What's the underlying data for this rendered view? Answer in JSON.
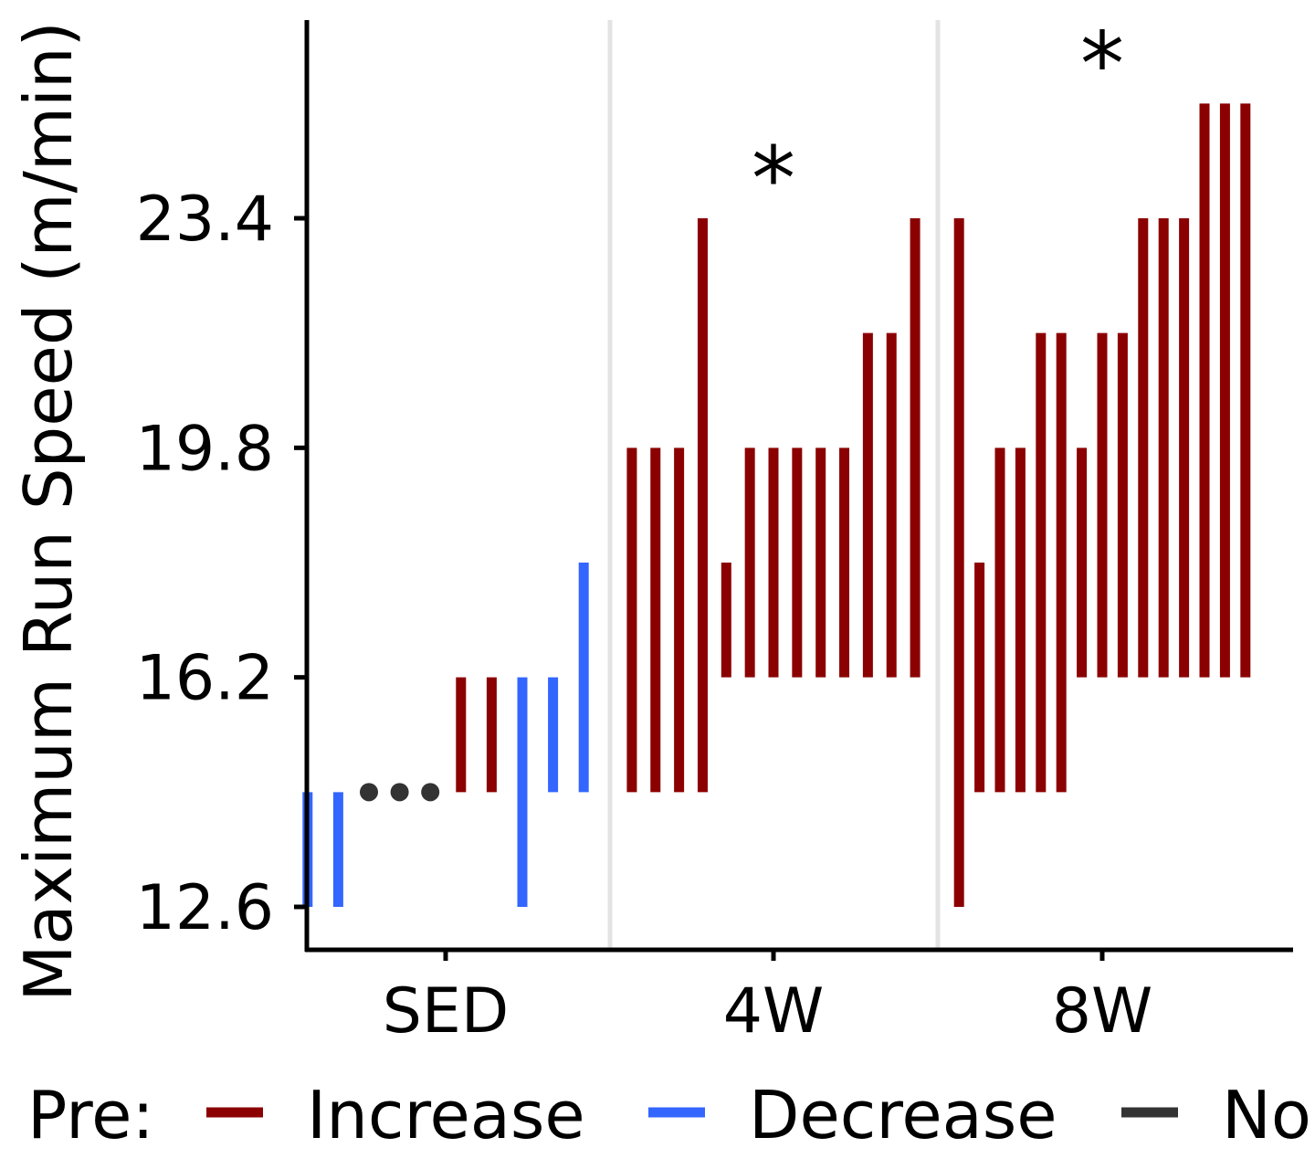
{
  "chart_data": {
    "type": "range-bar",
    "ylabel": "Maximum Run Speed (m/min)",
    "yticks": [
      12.6,
      16.2,
      19.8,
      23.4
    ],
    "ylim": [
      11.95,
      26.5
    ],
    "groups": [
      "SED",
      "4W",
      "8W"
    ],
    "significance_marker": "*",
    "legend": {
      "title": "Pre:",
      "position": "bottom",
      "entries": [
        {
          "label": "Increase",
          "color": "#8B0000"
        },
        {
          "label": "Decrease",
          "color": "#3366FF"
        },
        {
          "label": "No",
          "color": "#333333"
        }
      ]
    },
    "series": [
      {
        "group": "SED",
        "significant": false,
        "subjects": [
          {
            "from": 14.4,
            "to": 12.6,
            "change": "Decrease"
          },
          {
            "from": 14.4,
            "to": 12.6,
            "change": "Decrease"
          },
          {
            "from": 14.4,
            "to": 14.4,
            "change": "No"
          },
          {
            "from": 14.4,
            "to": 14.4,
            "change": "No"
          },
          {
            "from": 14.4,
            "to": 14.4,
            "change": "No"
          },
          {
            "from": 14.4,
            "to": 16.2,
            "change": "Increase"
          },
          {
            "from": 14.4,
            "to": 16.2,
            "change": "Increase"
          },
          {
            "from": 16.2,
            "to": 12.6,
            "change": "Decrease"
          },
          {
            "from": 16.2,
            "to": 14.4,
            "change": "Decrease"
          },
          {
            "from": 18.0,
            "to": 14.4,
            "change": "Decrease"
          }
        ]
      },
      {
        "group": "4W",
        "significant": true,
        "subjects": [
          {
            "from": 14.4,
            "to": 19.8,
            "change": "Increase"
          },
          {
            "from": 14.4,
            "to": 19.8,
            "change": "Increase"
          },
          {
            "from": 14.4,
            "to": 19.8,
            "change": "Increase"
          },
          {
            "from": 14.4,
            "to": 23.4,
            "change": "Increase"
          },
          {
            "from": 16.2,
            "to": 18.0,
            "change": "Increase"
          },
          {
            "from": 16.2,
            "to": 19.8,
            "change": "Increase"
          },
          {
            "from": 16.2,
            "to": 19.8,
            "change": "Increase"
          },
          {
            "from": 16.2,
            "to": 19.8,
            "change": "Increase"
          },
          {
            "from": 16.2,
            "to": 19.8,
            "change": "Increase"
          },
          {
            "from": 16.2,
            "to": 19.8,
            "change": "Increase"
          },
          {
            "from": 16.2,
            "to": 21.6,
            "change": "Increase"
          },
          {
            "from": 16.2,
            "to": 21.6,
            "change": "Increase"
          },
          {
            "from": 16.2,
            "to": 23.4,
            "change": "Increase"
          }
        ]
      },
      {
        "group": "8W",
        "significant": true,
        "subjects": [
          {
            "from": 12.6,
            "to": 23.4,
            "change": "Increase"
          },
          {
            "from": 14.4,
            "to": 18.0,
            "change": "Increase"
          },
          {
            "from": 14.4,
            "to": 19.8,
            "change": "Increase"
          },
          {
            "from": 14.4,
            "to": 19.8,
            "change": "Increase"
          },
          {
            "from": 14.4,
            "to": 21.6,
            "change": "Increase"
          },
          {
            "from": 14.4,
            "to": 21.6,
            "change": "Increase"
          },
          {
            "from": 16.2,
            "to": 19.8,
            "change": "Increase"
          },
          {
            "from": 16.2,
            "to": 21.6,
            "change": "Increase"
          },
          {
            "from": 16.2,
            "to": 21.6,
            "change": "Increase"
          },
          {
            "from": 16.2,
            "to": 23.4,
            "change": "Increase"
          },
          {
            "from": 16.2,
            "to": 23.4,
            "change": "Increase"
          },
          {
            "from": 16.2,
            "to": 23.4,
            "change": "Increase"
          },
          {
            "from": 16.2,
            "to": 25.2,
            "change": "Increase"
          },
          {
            "from": 16.2,
            "to": 25.2,
            "change": "Increase"
          },
          {
            "from": 16.2,
            "to": 25.2,
            "change": "Increase"
          }
        ]
      }
    ]
  }
}
